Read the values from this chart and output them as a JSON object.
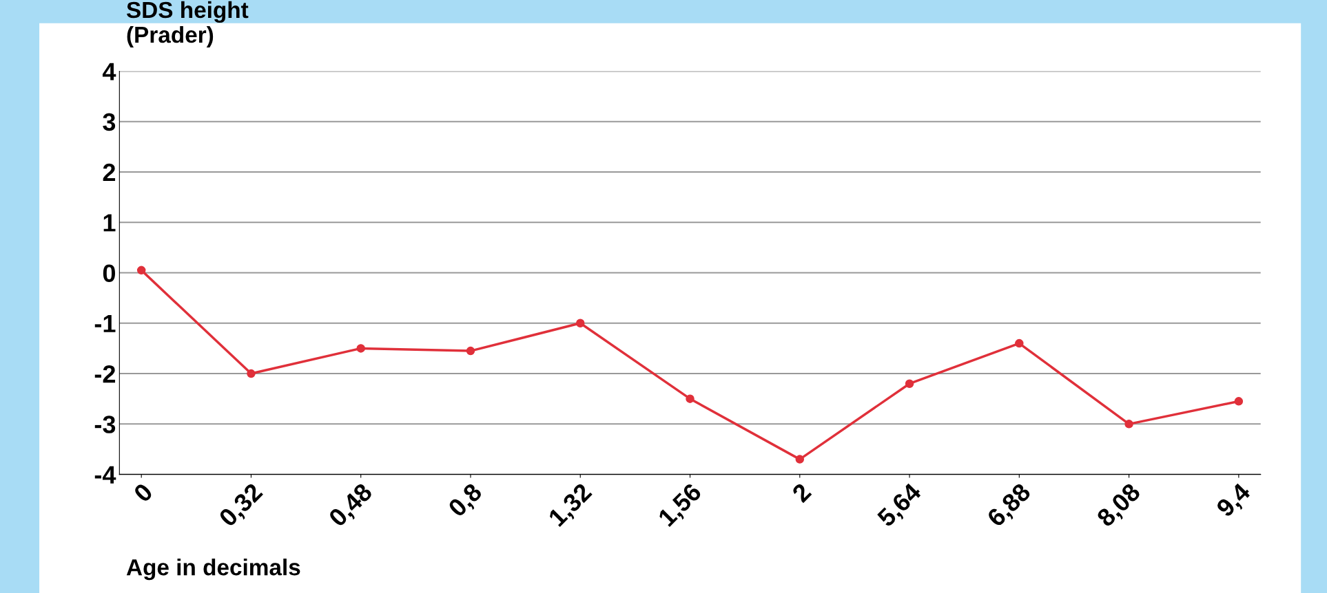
{
  "chart_data": {
    "type": "line",
    "ylabel": "SDS height\n(Prader)",
    "xlabel": "Age in decimals",
    "categories": [
      "0",
      "0,32",
      "0,48",
      "0,8",
      "1,32",
      "1,56",
      "2",
      "5,64",
      "6,88",
      "8,08",
      "9,4"
    ],
    "series": [
      {
        "color": "#e0303a",
        "values": [
          0.05,
          -2.0,
          -1.5,
          -1.55,
          -1.0,
          -2.5,
          -3.7,
          -2.2,
          -1.4,
          -3.0,
          -2.55
        ]
      }
    ],
    "ylim": [
      -4,
      4
    ],
    "yticks": [
      -4,
      -3,
      -2,
      -1,
      0,
      1,
      2,
      3,
      4
    ],
    "grid": "y",
    "marker": "circle",
    "line_style": "solid"
  }
}
